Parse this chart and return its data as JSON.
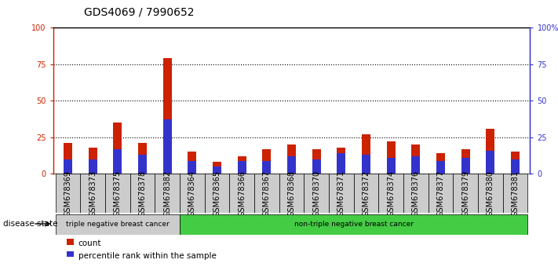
{
  "title": "GDS4069 / 7990652",
  "samples": [
    "GSM678369",
    "GSM678373",
    "GSM678375",
    "GSM678378",
    "GSM678382",
    "GSM678364",
    "GSM678365",
    "GSM678366",
    "GSM678367",
    "GSM678368",
    "GSM678370",
    "GSM678371",
    "GSM678372",
    "GSM678374",
    "GSM678376",
    "GSM678377",
    "GSM678379",
    "GSM678380",
    "GSM678381"
  ],
  "count_values": [
    21,
    18,
    35,
    21,
    79,
    15,
    8,
    12,
    17,
    20,
    17,
    18,
    27,
    22,
    20,
    14,
    17,
    31,
    15
  ],
  "percentile_values": [
    10,
    10,
    17,
    13,
    37,
    9,
    5,
    9,
    9,
    12,
    10,
    14,
    13,
    11,
    12,
    9,
    11,
    16,
    10
  ],
  "group1_label": "triple negative breast cancer",
  "group2_label": "non-triple negative breast cancer",
  "group1_count": 5,
  "group2_count": 14,
  "disease_state_label": "disease state",
  "legend_count": "count",
  "legend_percentile": "percentile rank within the sample",
  "ylim": [
    0,
    100
  ],
  "yticks": [
    0,
    25,
    50,
    75,
    100
  ],
  "ytick_labels_left": [
    "0",
    "25",
    "50",
    "75",
    "100"
  ],
  "ytick_labels_right": [
    "0",
    "25",
    "50",
    "75",
    "100%"
  ],
  "bar_color_count": "#cc2200",
  "bar_color_percentile": "#3333cc",
  "group1_bg": "#cccccc",
  "group2_bg": "#44cc44",
  "title_fontsize": 10,
  "tick_fontsize": 7,
  "bar_width": 0.35
}
